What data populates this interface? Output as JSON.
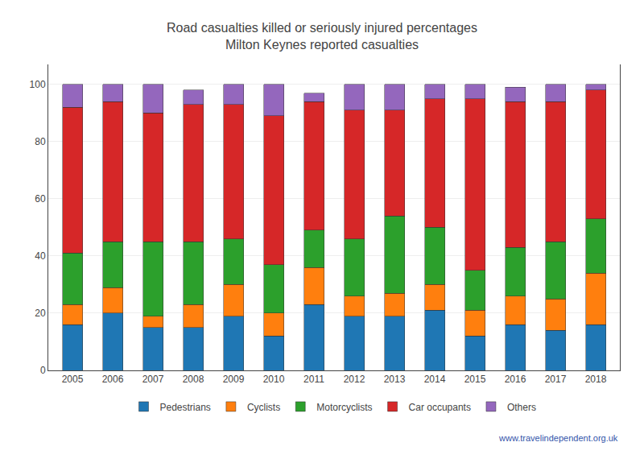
{
  "chart_data": {
    "type": "bar",
    "stacked": true,
    "title": "Road casualties killed or seriously injured percentages",
    "subtitle": "Milton Keynes reported casualties",
    "categories": [
      "2005",
      "2006",
      "2007",
      "2008",
      "2009",
      "2010",
      "2011",
      "2012",
      "2013",
      "2014",
      "2015",
      "2016",
      "2017",
      "2018"
    ],
    "series": [
      {
        "name": "Pedestrians",
        "values": [
          16,
          20,
          15,
          15,
          19,
          12,
          23,
          19,
          19,
          21,
          12,
          16,
          14,
          16
        ]
      },
      {
        "name": "Cyclists",
        "values": [
          7,
          9,
          4,
          8,
          11,
          8,
          13,
          7,
          8,
          9,
          9,
          10,
          11,
          18
        ]
      },
      {
        "name": "Motorcyclists",
        "values": [
          18,
          16,
          26,
          22,
          16,
          17,
          13,
          20,
          27,
          20,
          14,
          17,
          20,
          19
        ]
      },
      {
        "name": "Car occupants",
        "values": [
          51,
          49,
          45,
          48,
          47,
          52,
          45,
          45,
          37,
          45,
          60,
          51,
          49,
          45
        ]
      },
      {
        "name": "Others",
        "values": [
          8,
          6,
          10,
          5,
          7,
          11,
          3,
          9,
          9,
          5,
          5,
          5,
          6,
          2
        ]
      }
    ],
    "ylim": [
      0,
      107
    ],
    "yticks": [
      0,
      20,
      40,
      60,
      80,
      100
    ],
    "grid": true,
    "legend": "bottom",
    "annotations": [
      "www.travelindependent.org.uk"
    ]
  }
}
